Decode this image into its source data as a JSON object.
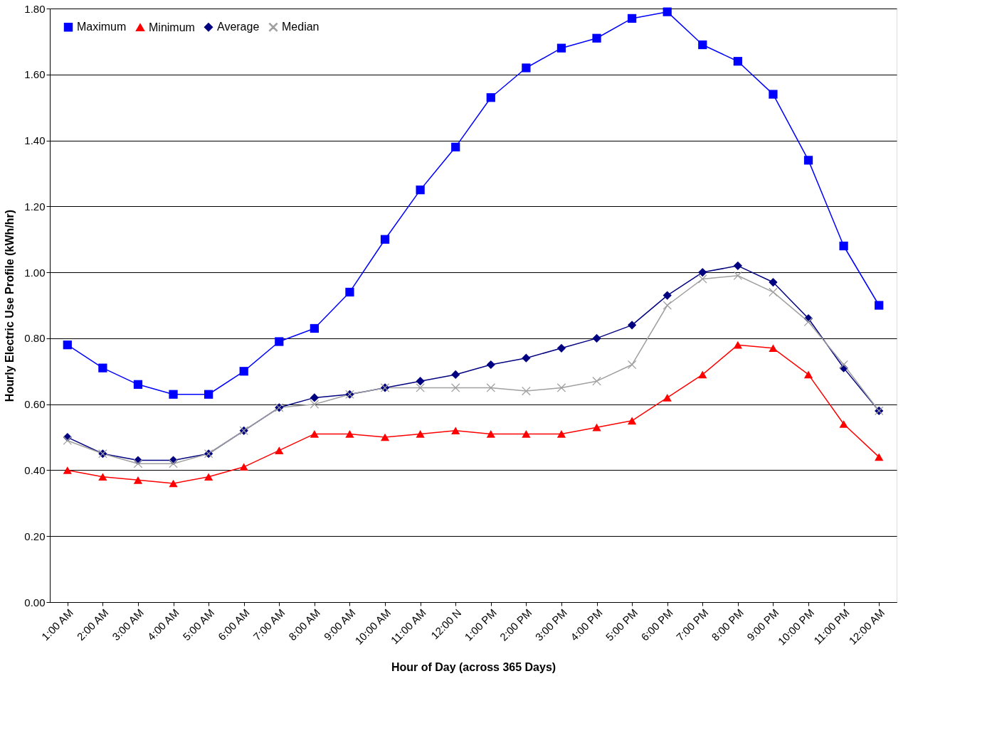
{
  "chart_data": {
    "type": "line",
    "xlabel": "Hour of Day (across 365 Days)",
    "ylabel": "Hourly Electric Use Profile (kWh/hr)",
    "categories": [
      "1:00 AM",
      "2:00 AM",
      "3:00 AM",
      "4:00 AM",
      "5:00 AM",
      "6:00 AM",
      "7:00 AM",
      "8:00 AM",
      "9:00 AM",
      "10:00 AM",
      "11:00 AM",
      "12:00 N",
      "1:00 PM",
      "2:00 PM",
      "3:00 PM",
      "4:00 PM",
      "5:00 PM",
      "6:00 PM",
      "7:00 PM",
      "8:00 PM",
      "9:00 PM",
      "10:00 PM",
      "11:00 PM",
      "12:00 AM"
    ],
    "series": [
      {
        "name": "Maximum",
        "color": "#0000ff",
        "marker": "square",
        "values": [
          0.78,
          0.71,
          0.66,
          0.63,
          0.63,
          0.7,
          0.79,
          0.83,
          0.94,
          1.1,
          1.25,
          1.38,
          1.53,
          1.62,
          1.68,
          1.71,
          1.77,
          1.79,
          1.69,
          1.64,
          1.54,
          1.34,
          1.08,
          0.9
        ]
      },
      {
        "name": "Minimum",
        "color": "#ff0000",
        "marker": "triangle",
        "values": [
          0.4,
          0.38,
          0.37,
          0.36,
          0.38,
          0.41,
          0.46,
          0.51,
          0.51,
          0.5,
          0.51,
          0.52,
          0.51,
          0.51,
          0.51,
          0.53,
          0.55,
          0.62,
          0.69,
          0.78,
          0.77,
          0.69,
          0.54,
          0.44
        ]
      },
      {
        "name": "Average",
        "color": "#000080",
        "marker": "diamond",
        "values": [
          0.5,
          0.45,
          0.43,
          0.43,
          0.45,
          0.52,
          0.59,
          0.62,
          0.63,
          0.65,
          0.67,
          0.69,
          0.72,
          0.74,
          0.77,
          0.8,
          0.84,
          0.93,
          1.0,
          1.02,
          0.97,
          0.86,
          0.71,
          0.58
        ]
      },
      {
        "name": "Median",
        "color": "#a0a0a0",
        "marker": "cross",
        "values": [
          0.49,
          0.45,
          0.42,
          0.42,
          0.45,
          0.52,
          0.59,
          0.6,
          0.63,
          0.65,
          0.65,
          0.65,
          0.65,
          0.64,
          0.65,
          0.67,
          0.72,
          0.9,
          0.98,
          0.99,
          0.94,
          0.85,
          0.72,
          0.58
        ]
      }
    ],
    "ylim": [
      0,
      1.8
    ],
    "yticks": [
      {
        "value": 0,
        "label": "0.00"
      },
      {
        "value": 0.2,
        "label": "0.20"
      },
      {
        "value": 0.4,
        "label": "0.40"
      },
      {
        "value": 0.6,
        "label": "0.60"
      },
      {
        "value": 0.8,
        "label": "0.80"
      },
      {
        "value": 1.0,
        "label": "1.00"
      },
      {
        "value": 1.2,
        "label": "1.20"
      },
      {
        "value": 1.4,
        "label": "1.40"
      },
      {
        "value": 1.6,
        "label": "1.60"
      },
      {
        "value": 1.8,
        "label": "1.80"
      }
    ],
    "grid": "y",
    "legend": "top left",
    "line_style": "solid"
  }
}
